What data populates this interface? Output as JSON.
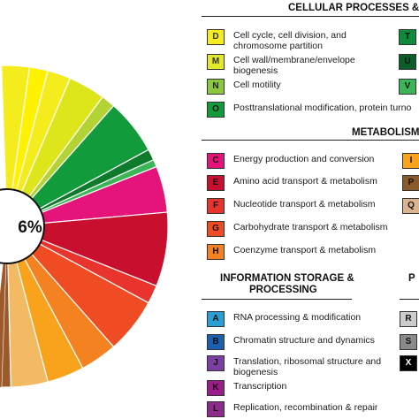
{
  "chart_data": {
    "type": "pie",
    "center_label": "6%",
    "slices": [
      {
        "code": "D",
        "value": 2.5,
        "color": "#f4ec1c"
      },
      {
        "code": "M",
        "value": 4.0,
        "color": "#dde61a"
      },
      {
        "code": "N",
        "value": 1.5,
        "color": "#b3d334"
      },
      {
        "code": "O",
        "value": 6.0,
        "color": "#129b3a"
      },
      {
        "code": "T",
        "value": 1.2,
        "color": "#0d7a2c"
      },
      {
        "code": "V",
        "value": 0.8,
        "color": "#3cb558"
      },
      {
        "code": "C",
        "value": 5.0,
        "color": "#e5147a"
      },
      {
        "code": "E",
        "value": 8.0,
        "color": "#c8102e"
      },
      {
        "code": "F",
        "value": 2.0,
        "color": "#e8342c"
      },
      {
        "code": "G",
        "value": 6.0,
        "color": "#ef4c23"
      },
      {
        "code": "H",
        "value": 4.0,
        "color": "#f58220"
      },
      {
        "code": "I",
        "value": 4.0,
        "color": "#f9a21b"
      },
      {
        "code": "Q",
        "value": 4.0,
        "color": "#f4b963"
      },
      {
        "code": "P",
        "value": 1.0,
        "color": "#9c5a2b"
      }
    ],
    "extra_slices": [
      {
        "code": "y1",
        "value": 3.0,
        "color": "#f4ec1c"
      },
      {
        "code": "y2",
        "value": 2.0,
        "color": "#fff200"
      }
    ]
  },
  "legend": {
    "sections": [
      {
        "title": "CELLULAR PROCESSES & SIG",
        "items": [
          {
            "code": "D",
            "color": "#f4ec1c",
            "text_color": "#333",
            "label": "Cell cycle, cell division, and",
            "label2": "chromosome partition"
          },
          {
            "code": "M",
            "color": "#e3e82a",
            "text_color": "#333",
            "label": "Cell wall/membrane/envelope",
            "label2": "biogenesis"
          },
          {
            "code": "N",
            "color": "#8dc63f",
            "text_color": "#222",
            "label": "Cell motility",
            "label2": ""
          },
          {
            "code": "O",
            "color": "#129b3a",
            "text_color": "#111",
            "label": "Posttranslational modification, protein turno",
            "label2": ""
          },
          {
            "code": "T",
            "color": "#0f8a3a",
            "text_color": "#111",
            "label": "",
            "label2": ""
          },
          {
            "code": "U",
            "color": "#0b5e2a",
            "text_color": "#111",
            "label": "",
            "label2": ""
          },
          {
            "code": "V",
            "color": "#3cb558",
            "text_color": "#111",
            "label": "",
            "label2": ""
          }
        ]
      },
      {
        "title": "METABOLISM",
        "items": [
          {
            "code": "C",
            "color": "#e5147a",
            "text_color": "#111",
            "label": "Energy production and conversion",
            "label2": ""
          },
          {
            "code": "E",
            "color": "#c8102e",
            "text_color": "#111",
            "label": "Amino acid transport & metabolism",
            "label2": ""
          },
          {
            "code": "F",
            "color": "#e8342c",
            "text_color": "#111",
            "label": "Nucleotide transport & metabolism",
            "label2": ""
          },
          {
            "code": "G",
            "color": "#ef4c23",
            "text_color": "#111",
            "label": "Carbohydrate transport & metabolism",
            "label2": ""
          },
          {
            "code": "H",
            "color": "#f58220",
            "text_color": "#111",
            "label": "Coenzyme transport & metabolism",
            "label2": ""
          },
          {
            "code": "I",
            "color": "#f9a21b",
            "text_color": "#111",
            "label": "",
            "label2": ""
          },
          {
            "code": "P",
            "color": "#8b5a2b",
            "text_color": "#111",
            "label": "",
            "label2": ""
          },
          {
            "code": "Q",
            "color": "#d9b48f",
            "text_color": "#111",
            "label": "",
            "label2": ""
          }
        ]
      },
      {
        "title": "INFORMATION STORAGE &",
        "title2": "PROCESSING",
        "items": [
          {
            "code": "A",
            "color": "#2a9fd6",
            "text_color": "#111",
            "label": "RNA processing & modification",
            "label2": ""
          },
          {
            "code": "B",
            "color": "#1c5fae",
            "text_color": "#111",
            "label": "Chromatin structure and dynamics",
            "label2": ""
          },
          {
            "code": "J",
            "color": "#7a3fa0",
            "text_color": "#111",
            "label": "Translation, ribosomal structure and",
            "label2": "biogenesis"
          },
          {
            "code": "K",
            "color": "#9b1d8a",
            "text_color": "#111",
            "label": "Transcription",
            "label2": ""
          },
          {
            "code": "L",
            "color": "#8e2a8a",
            "text_color": "#111",
            "label": "Replication, recombination & repair",
            "label2": ""
          }
        ]
      },
      {
        "title": "P",
        "items": [
          {
            "code": "R",
            "color": "#cccccc",
            "text_color": "#111",
            "label": "",
            "label2": ""
          },
          {
            "code": "S",
            "color": "#8a8a8a",
            "text_color": "#111",
            "label": "",
            "label2": ""
          },
          {
            "code": "X",
            "color": "#000000",
            "text_color": "#ffffff",
            "label": "",
            "label2": ""
          }
        ]
      }
    ]
  }
}
